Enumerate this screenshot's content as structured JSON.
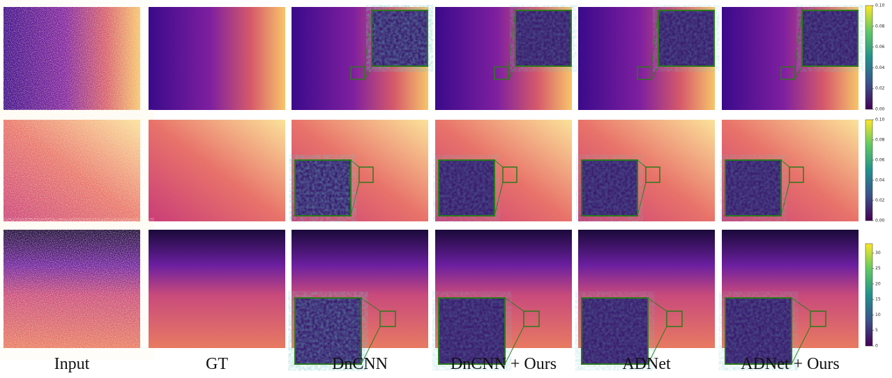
{
  "columns": [
    "Input",
    "GT",
    "DnCNN",
    "DnCNN + Ours",
    "ADNet",
    "ADNet + Ours"
  ],
  "colorbars": [
    {
      "range": [
        0,
        0.1
      ],
      "ticks": [
        {
          "value": 0,
          "label": "0.00"
        },
        {
          "value": 0.02,
          "label": "0.02"
        },
        {
          "value": 0.04,
          "label": "0.04"
        },
        {
          "value": 0.06,
          "label": "0.06"
        },
        {
          "value": 0.08,
          "label": "0.08"
        },
        {
          "value": 0.1,
          "label": "0.10"
        }
      ]
    },
    {
      "range": [
        0,
        0.1
      ],
      "ticks": [
        {
          "value": 0,
          "label": "0.00"
        },
        {
          "value": 0.02,
          "label": "0.02"
        },
        {
          "value": 0.04,
          "label": "0.04"
        },
        {
          "value": 0.06,
          "label": "0.06"
        },
        {
          "value": 0.08,
          "label": "0.08"
        },
        {
          "value": 0.1,
          "label": "0.10"
        }
      ]
    },
    {
      "range": [
        0,
        33
      ],
      "ticks": [
        0,
        5,
        10,
        15,
        20,
        25,
        30
      ]
    }
  ]
}
